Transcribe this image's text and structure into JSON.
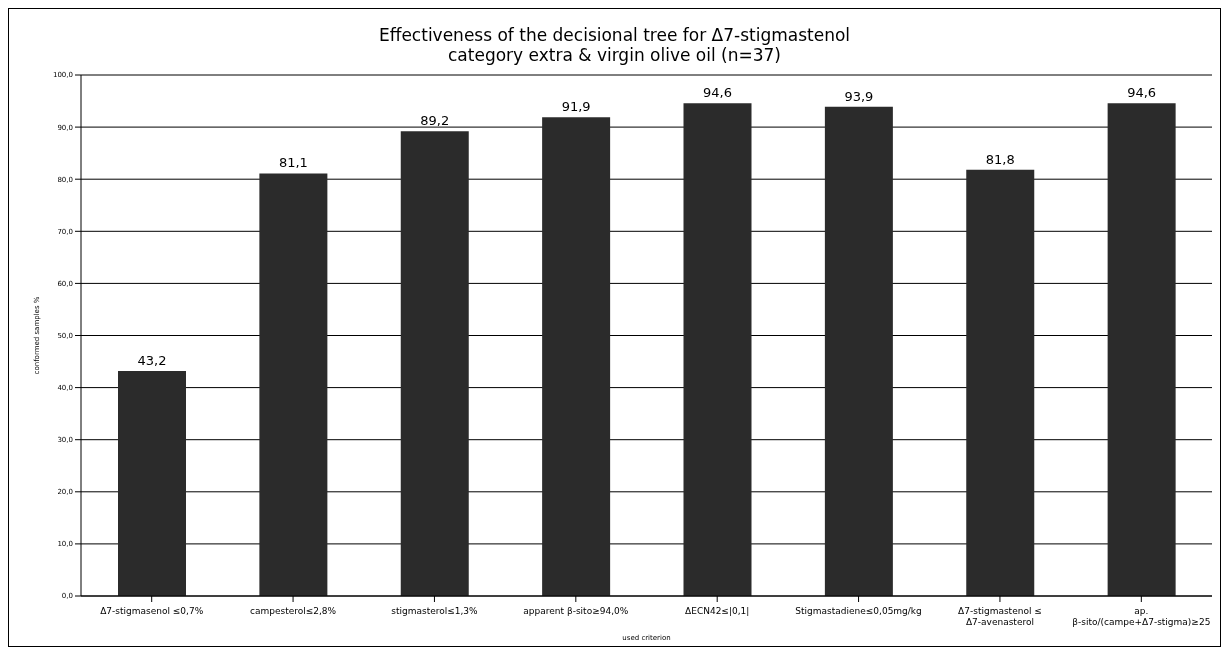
{
  "chart_data": {
    "type": "bar",
    "title": "Effectiveness of the decisional tree for Δ7-stigmastenol",
    "subtitle": "category extra & virgin olive oil (n=37)",
    "xlabel": "used criterion",
    "ylabel": "conformed samples %",
    "categories": [
      "Δ7-stigmasenol ≤0,7%",
      "campesterol≤2,8%",
      "stigmasterol≤1,3%",
      "apparent β-sito≥94,0%",
      "ΔECN42≤|0,1|",
      "Stigmastadiene≤0,05mg/kg",
      "Δ7-stigmastenol ≤ Δ7-avenasterol",
      "ap. β-sito/(campe+Δ7-stigma)≥25"
    ],
    "values": [
      43.2,
      81.1,
      89.2,
      91.9,
      94.6,
      93.9,
      81.8,
      94.6
    ],
    "value_labels": [
      "43,2",
      "81,1",
      "89,2",
      "91,9",
      "94,6",
      "93,9",
      "81,8",
      "94,6"
    ],
    "color": "#2b2b2b",
    "ylim": [
      0,
      100
    ],
    "yticks": [
      {
        "value": 0,
        "label": "0,0"
      },
      {
        "value": 10,
        "label": "10,0"
      },
      {
        "value": 20,
        "label": "20,0"
      },
      {
        "value": 30,
        "label": "30,0"
      },
      {
        "value": 40,
        "label": "40,0"
      },
      {
        "value": 50,
        "label": "50,0"
      },
      {
        "value": 60,
        "label": "60,0"
      },
      {
        "value": 70,
        "label": "70,0"
      },
      {
        "value": 80,
        "label": "80,0"
      },
      {
        "value": 90,
        "label": "90,0"
      },
      {
        "value": 100,
        "label": "100,0"
      }
    ],
    "grid": "y"
  }
}
